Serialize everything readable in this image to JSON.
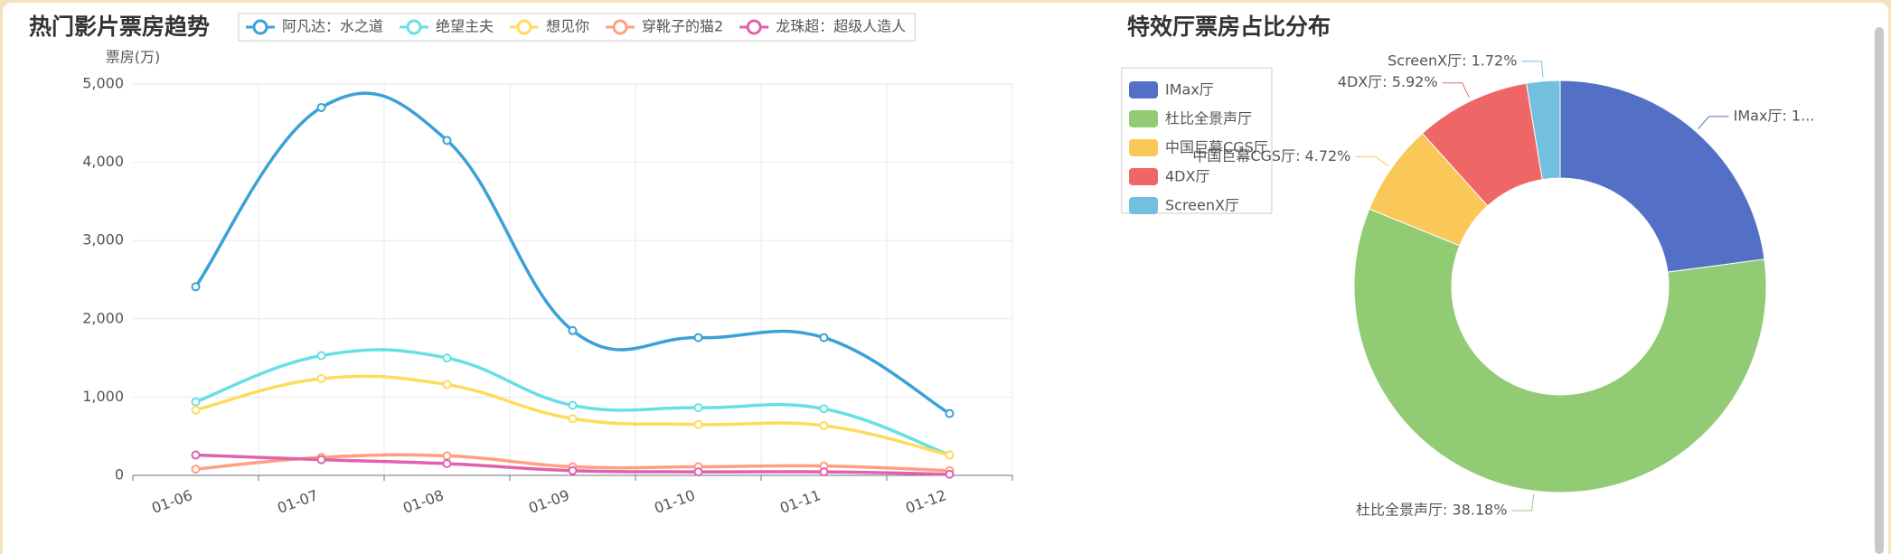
{
  "chart_data": [
    {
      "type": "line",
      "title": "热门影片票房趋势",
      "y_label": "票房(万)",
      "categories": [
        "01-06",
        "01-07",
        "01-08",
        "01-09",
        "01-10",
        "01-11",
        "01-12"
      ],
      "series": [
        {
          "name": "阿凡达：水之道",
          "color": "#3ba1d6",
          "values": [
            2410,
            4700,
            4280,
            1850,
            1760,
            1760,
            790
          ]
        },
        {
          "name": "绝望主夫",
          "color": "#67e0e3",
          "values": [
            940,
            1530,
            1500,
            895,
            865,
            850,
            260
          ]
        },
        {
          "name": "想见你",
          "color": "#ffdb5c",
          "values": [
            835,
            1235,
            1160,
            725,
            650,
            635,
            260
          ]
        },
        {
          "name": "穿靴子的猫2",
          "color": "#ff9f7f",
          "values": [
            80,
            230,
            250,
            110,
            110,
            120,
            60
          ]
        },
        {
          "name": "龙珠超：超级人造人",
          "color": "#e062ae",
          "values": [
            260,
            200,
            150,
            60,
            45,
            45,
            15
          ]
        }
      ],
      "ylim": [
        0,
        5000
      ],
      "yticks": [
        0,
        {
          "value": 1000,
          "label": "1,000"
        },
        {
          "value": 2000,
          "label": "2,000"
        },
        {
          "value": 3000,
          "label": "3,000"
        },
        {
          "value": 4000,
          "label": "4,000"
        },
        {
          "value": 5000,
          "label": "5,000"
        }
      ],
      "grid": true,
      "smooth": true
    },
    {
      "type": "donut",
      "title": "特效厅票房占比分布",
      "categories": [
        "IMax厅",
        "杜比全景声厅",
        "中国巨幕CGS厅",
        "4DX厅",
        "ScreenX厅"
      ],
      "values": [
        15,
        38.18,
        4.72,
        5.92,
        1.72
      ],
      "value_labels": [
        "IMax厅: 1...",
        "杜比全景声厅: 38.18%",
        "中国巨幕CGS厅: 4.72%",
        "4DX厅: 5.92%",
        "ScreenX厅: 1.72%"
      ],
      "colors": [
        "#5470c6",
        "#91cc75",
        "#fac858",
        "#ee6666",
        "#73c0de"
      ],
      "legend": "top-left"
    }
  ]
}
